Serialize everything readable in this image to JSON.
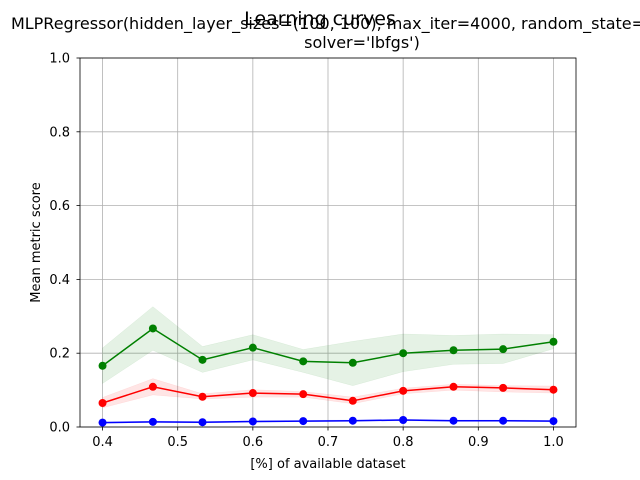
{
  "chart_data": {
    "type": "line",
    "suptitle": "Learning curves",
    "title_line1": "MLPRegressor(hidden_layer_sizes=(100, 100), max_iter=4000, random_state=",
    "title_line2": "solver='lbfgs')",
    "xlabel": "[%] of available dataset",
    "ylabel": "Mean metric score",
    "xlim": [
      0.37,
      1.03
    ],
    "ylim": [
      0.0,
      1.0
    ],
    "grid": true,
    "x_ticks": [
      0.4,
      0.5,
      0.6,
      0.7,
      0.8,
      0.9,
      1.0
    ],
    "x_tick_labels": [
      "0.4",
      "0.5",
      "0.6",
      "0.7",
      "0.8",
      "0.9",
      "1.0"
    ],
    "y_ticks": [
      0.0,
      0.2,
      0.4,
      0.6,
      0.8,
      1.0
    ],
    "y_tick_labels": [
      "0.0",
      "0.2",
      "0.4",
      "0.6",
      "0.8",
      "1.0"
    ],
    "x": [
      0.4,
      0.467,
      0.533,
      0.6,
      0.667,
      0.733,
      0.8,
      0.867,
      0.933,
      1.0
    ],
    "series": [
      {
        "color": "#008000",
        "band_color": "#008000",
        "values": [
          0.166,
          0.267,
          0.182,
          0.215,
          0.178,
          0.174,
          0.2,
          0.208,
          0.211,
          0.231
        ],
        "lower": [
          0.118,
          0.208,
          0.148,
          0.182,
          0.148,
          0.112,
          0.15,
          0.17,
          0.172,
          0.212
        ],
        "upper": [
          0.214,
          0.326,
          0.218,
          0.25,
          0.21,
          0.232,
          0.252,
          0.248,
          0.252,
          0.25
        ]
      },
      {
        "color": "#ff0000",
        "band_color": "#ff0000",
        "values": [
          0.065,
          0.109,
          0.082,
          0.092,
          0.089,
          0.071,
          0.098,
          0.109,
          0.106,
          0.101
        ],
        "lower": [
          0.052,
          0.087,
          0.076,
          0.081,
          0.081,
          0.063,
          0.09,
          0.1,
          0.095,
          0.092
        ],
        "upper": [
          0.08,
          0.131,
          0.09,
          0.101,
          0.096,
          0.081,
          0.105,
          0.116,
          0.112,
          0.111
        ]
      },
      {
        "color": "#0000ff",
        "band_color": "#0000ff",
        "values": [
          0.012,
          0.014,
          0.013,
          0.015,
          0.016,
          0.017,
          0.019,
          0.017,
          0.017,
          0.016
        ],
        "lower": [
          0.01,
          0.012,
          0.011,
          0.013,
          0.014,
          0.015,
          0.017,
          0.015,
          0.015,
          0.014
        ],
        "upper": [
          0.014,
          0.016,
          0.015,
          0.017,
          0.018,
          0.019,
          0.021,
          0.019,
          0.019,
          0.018
        ]
      }
    ]
  }
}
